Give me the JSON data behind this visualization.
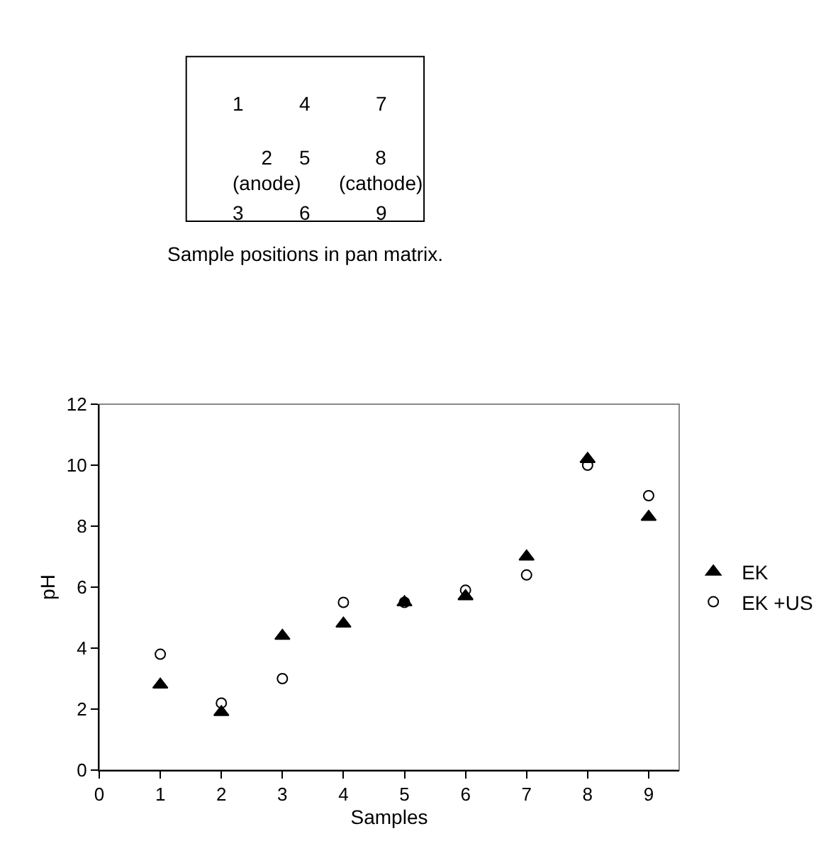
{
  "chart_data": [
    {
      "type": "other",
      "title": "Sample positions in pan matrix.",
      "annotations": [
        "1",
        "4",
        "7",
        "2\n(anode)",
        "5",
        "8\n(cathode)",
        "3",
        "6",
        "9"
      ]
    },
    {
      "type": "scatter",
      "xlabel": "Samples",
      "ylabel": "pH",
      "x": [
        1,
        2,
        3,
        4,
        5,
        6,
        7,
        8,
        9
      ],
      "series": [
        {
          "name": "EK",
          "color": "#000000",
          "marker": "triangle",
          "values": [
            2.8,
            1.9,
            4.4,
            4.8,
            5.5,
            5.7,
            7.0,
            10.2,
            8.3
          ]
        },
        {
          "name": "EK +US",
          "color": "#000000",
          "marker": "circle",
          "values": [
            3.8,
            2.2,
            3.0,
            5.5,
            5.5,
            5.9,
            6.4,
            10.0,
            9.0
          ]
        }
      ],
      "xlim": [
        0,
        9.5
      ],
      "xticks": [
        0,
        1,
        2,
        3,
        4,
        5,
        6,
        7,
        8,
        9
      ],
      "ylim": [
        0,
        12
      ],
      "yticks": [
        0,
        2,
        4,
        6,
        8,
        10,
        12
      ],
      "grid": false,
      "legend": "right"
    }
  ]
}
